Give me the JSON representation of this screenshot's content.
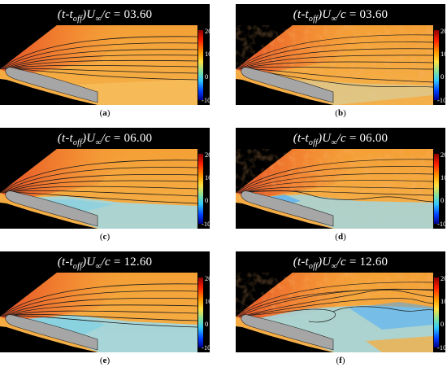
{
  "panels": [
    {
      "id": "a",
      "time": "03.60",
      "caption": "a"
    },
    {
      "id": "b",
      "time": "03.60",
      "caption": "b"
    },
    {
      "id": "c",
      "time": "06.00",
      "caption": "c"
    },
    {
      "id": "d",
      "time": "06.00",
      "caption": "d"
    },
    {
      "id": "e",
      "time": "12.60",
      "caption": "e"
    },
    {
      "id": "f",
      "time": "12.60",
      "caption": "f"
    }
  ],
  "title_parts": {
    "open": "(t-t",
    "sub": "off",
    "mid": ")U",
    "sub2": "∞",
    "tail": "/c = "
  },
  "colorbar": {
    "ticks": [
      "20",
      "10",
      "0",
      "-10"
    ],
    "min": -10,
    "max": 20
  },
  "colors": {
    "background": "#000000",
    "airfoil": "#a6a6a6",
    "field": "#f2a33a",
    "wake": "#9fd9e8"
  }
}
